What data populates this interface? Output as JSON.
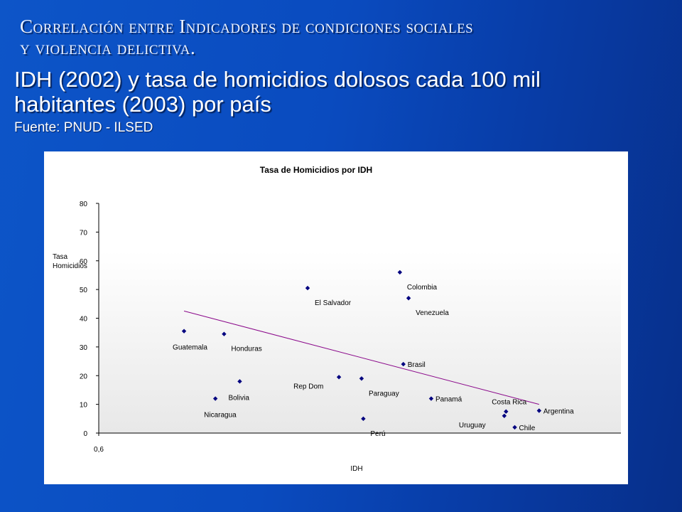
{
  "slide": {
    "title_line1": "Correlación entre Indicadores de condiciones sociales",
    "title_line2": "y violencia delictiva.",
    "subtitle_line1": "IDH (2002) y tasa de homicidios dolosos cada 100 mil",
    "subtitle_line2": "habitantes (2003) por país",
    "source": "Fuente: PNUD - ILSED"
  },
  "colors": {
    "marker": "#00007f",
    "trendline": "#8b0a8b",
    "axis": "#000000",
    "text": "#000000"
  },
  "chart_data": {
    "type": "scatter",
    "title": "Tasa de Homicidios por IDH",
    "xlabel": "IDH",
    "ylabel": "Tasa Homicidios",
    "ylabel_lines": [
      "Tasa",
      "Homicidios"
    ],
    "xlim": [
      0.6,
      0.9
    ],
    "ylim": [
      0,
      80
    ],
    "x_tick_labels": [
      "0,6"
    ],
    "y_ticks": [
      0,
      10,
      20,
      30,
      40,
      50,
      60,
      70,
      80
    ],
    "grid": false,
    "legend": "none",
    "points": [
      {
        "label": "Guatemala",
        "x": 0.649,
        "y": 35.5,
        "label_pos": "below"
      },
      {
        "label": "Honduras",
        "x": 0.672,
        "y": 34.5,
        "label_pos": "below-right"
      },
      {
        "label": "Nicaragua",
        "x": 0.667,
        "y": 12,
        "label_pos": "below"
      },
      {
        "label": "Bolivia",
        "x": 0.681,
        "y": 18,
        "label_pos": "below"
      },
      {
        "label": "El Salvador",
        "x": 0.72,
        "y": 50.5,
        "label_pos": "below-right"
      },
      {
        "label": "Rep Dom",
        "x": 0.738,
        "y": 19.5,
        "label_pos": "below-left"
      },
      {
        "label": "Paraguay",
        "x": 0.751,
        "y": 19,
        "label_pos": "below-right"
      },
      {
        "label": "Perú",
        "x": 0.752,
        "y": 5,
        "label_pos": "below-right"
      },
      {
        "label": "Colombia",
        "x": 0.773,
        "y": 56,
        "label_pos": "below-right"
      },
      {
        "label": "Venezuela",
        "x": 0.778,
        "y": 47,
        "label_pos": "below-right"
      },
      {
        "label": "Brasil",
        "x": 0.775,
        "y": 24,
        "label_pos": "right"
      },
      {
        "label": "Panamá",
        "x": 0.791,
        "y": 12,
        "label_pos": "right"
      },
      {
        "label": "Costa Rica",
        "x": 0.834,
        "y": 7.5,
        "label_pos": "above"
      },
      {
        "label": "Uruguay",
        "x": 0.833,
        "y": 6,
        "label_pos": "below-left"
      },
      {
        "label": "Chile",
        "x": 0.839,
        "y": 2,
        "label_pos": "right"
      },
      {
        "label": "Argentina",
        "x": 0.853,
        "y": 7.8,
        "label_pos": "right"
      }
    ],
    "trendline": {
      "type": "linear",
      "x": [
        0.649,
        0.853
      ],
      "y": [
        42.5,
        10
      ]
    }
  }
}
